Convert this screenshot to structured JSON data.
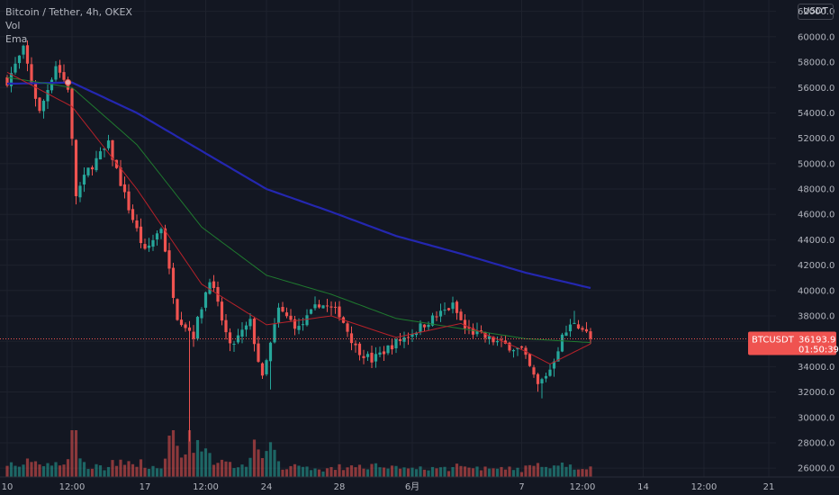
{
  "legend": {
    "symbol_line": "Bitcoin / Tether, 4h, OKEX",
    "vol_label": "Vol",
    "ema_label": "Ema"
  },
  "currency": "USDT",
  "price_tag": {
    "symbol": "BTCUSDT",
    "price": "36193.9",
    "countdown": "01:50:39"
  },
  "colors": {
    "background": "#131722",
    "grid": "#1e222d",
    "up": "#26a69a",
    "down": "#ef5350",
    "ema_long": "#2427b0",
    "ema_mid": "#1f7a2f",
    "ema_short": "#b7222a"
  },
  "chart_data": {
    "type": "candlestick",
    "y_ticks": [
      "26000.0",
      "28000.0",
      "30000.0",
      "32000.0",
      "34000.0",
      "36000.0",
      "38000.0",
      "40000.0",
      "42000.0",
      "44000.0",
      "46000.0",
      "48000.0",
      "50000.0",
      "52000.0",
      "54000.0",
      "56000.0",
      "58000.0",
      "60000.0",
      "62000.0"
    ],
    "x_ticks": [
      "10",
      "12:00",
      "17",
      "12:00",
      "24",
      "28",
      "6月",
      "7",
      "12:00",
      "14",
      "12:00",
      "21"
    ],
    "ylim": [
      25300,
      62900
    ],
    "n_bars": 145,
    "last_price": 36193.9,
    "candle_anchors": [
      {
        "bar": 0,
        "close": 56500
      },
      {
        "bar": 4,
        "close": 59000
      },
      {
        "bar": 8,
        "close": 54000
      },
      {
        "bar": 12,
        "close": 57800
      },
      {
        "bar": 15,
        "close": 56000
      },
      {
        "bar": 17,
        "close": 47500
      },
      {
        "bar": 20,
        "close": 49500
      },
      {
        "bar": 25,
        "close": 51500
      },
      {
        "bar": 30,
        "close": 46500
      },
      {
        "bar": 34,
        "close": 43000
      },
      {
        "bar": 38,
        "close": 45000
      },
      {
        "bar": 42,
        "close": 38000
      },
      {
        "bar": 46,
        "close": 36500
      },
      {
        "bar": 50,
        "close": 41000
      },
      {
        "bar": 55,
        "close": 35500
      },
      {
        "bar": 60,
        "close": 37500
      },
      {
        "bar": 63,
        "close": 33000
      },
      {
        "bar": 67,
        "close": 38500
      },
      {
        "bar": 72,
        "close": 37000
      },
      {
        "bar": 77,
        "close": 39000
      },
      {
        "bar": 82,
        "close": 38200
      },
      {
        "bar": 86,
        "close": 35500
      },
      {
        "bar": 90,
        "close": 34500
      },
      {
        "bar": 95,
        "close": 35700
      },
      {
        "bar": 100,
        "close": 36700
      },
      {
        "bar": 105,
        "close": 37800
      },
      {
        "bar": 110,
        "close": 38800
      },
      {
        "bar": 113,
        "close": 37000
      },
      {
        "bar": 118,
        "close": 36300
      },
      {
        "bar": 122,
        "close": 35800
      },
      {
        "bar": 127,
        "close": 35300
      },
      {
        "bar": 131,
        "close": 32500
      },
      {
        "bar": 134,
        "close": 33800
      },
      {
        "bar": 137,
        "close": 36300
      },
      {
        "bar": 140,
        "close": 37600
      },
      {
        "bar": 142,
        "close": 37000
      },
      {
        "bar": 144,
        "close": 36194
      }
    ],
    "wick_extremes": [
      {
        "bar": 45,
        "low": 28100
      },
      {
        "bar": 65,
        "low": 32200
      },
      {
        "bar": 132,
        "low": 31500
      },
      {
        "bar": 140,
        "high": 38400
      }
    ],
    "ema_long": [
      {
        "bar": 0,
        "value": 56300
      },
      {
        "bar": 16,
        "value": 56400
      },
      {
        "bar": 32,
        "value": 54000
      },
      {
        "bar": 48,
        "value": 51000
      },
      {
        "bar": 64,
        "value": 48000
      },
      {
        "bar": 80,
        "value": 46200
      },
      {
        "bar": 96,
        "value": 44300
      },
      {
        "bar": 112,
        "value": 42900
      },
      {
        "bar": 128,
        "value": 41400
      },
      {
        "bar": 144,
        "value": 40200
      }
    ],
    "ema_mid": [
      {
        "bar": 0,
        "value": 56800
      },
      {
        "bar": 16,
        "value": 56000
      },
      {
        "bar": 32,
        "value": 51500
      },
      {
        "bar": 48,
        "value": 45000
      },
      {
        "bar": 64,
        "value": 41200
      },
      {
        "bar": 80,
        "value": 39700
      },
      {
        "bar": 96,
        "value": 37800
      },
      {
        "bar": 112,
        "value": 37000
      },
      {
        "bar": 128,
        "value": 36200
      },
      {
        "bar": 144,
        "value": 35900
      }
    ],
    "ema_short": [
      {
        "bar": 0,
        "value": 57200
      },
      {
        "bar": 16,
        "value": 54500
      },
      {
        "bar": 32,
        "value": 48000
      },
      {
        "bar": 48,
        "value": 40500
      },
      {
        "bar": 64,
        "value": 37300
      },
      {
        "bar": 80,
        "value": 38000
      },
      {
        "bar": 96,
        "value": 36300
      },
      {
        "bar": 112,
        "value": 37400
      },
      {
        "bar": 128,
        "value": 35200
      },
      {
        "bar": 134,
        "value": 34200
      },
      {
        "bar": 144,
        "value": 35800
      }
    ]
  }
}
